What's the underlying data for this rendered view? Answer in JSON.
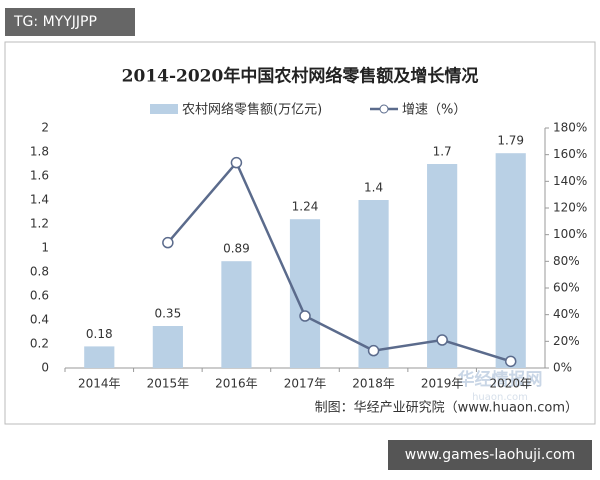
{
  "chart_data": {
    "type": "bar-line",
    "title": "2014-2020年中国农村网络零售额及增长情况",
    "categories": [
      "2014年",
      "2015年",
      "2016年",
      "2017年",
      "2018年",
      "2019年",
      "2020年"
    ],
    "series": [
      {
        "name": "农村网络零售额(万亿元)",
        "color": "#b9d0e5",
        "type": "bar",
        "values": [
          0.18,
          0.35,
          0.89,
          1.24,
          1.4,
          1.7,
          1.79
        ]
      },
      {
        "name": "增速（%）",
        "color": "#5b6b8c",
        "type": "line",
        "axis": "y2",
        "values": [
          null,
          94,
          154,
          39,
          13,
          21,
          5
        ]
      }
    ],
    "ylim": [
      0,
      2
    ],
    "yticks": [
      0,
      0.2,
      0.4,
      0.6,
      0.8,
      1,
      1.2,
      1.4,
      1.6,
      1.8,
      2
    ],
    "y2lim": [
      0,
      180
    ],
    "y2ticks": [
      {
        "value": 0,
        "label": "0%"
      },
      {
        "value": 20,
        "label": "20%"
      },
      {
        "value": 40,
        "label": "40%"
      },
      {
        "value": 60,
        "label": "60%"
      },
      {
        "value": 80,
        "label": "80%"
      },
      {
        "value": 100,
        "label": "100%"
      },
      {
        "value": 120,
        "label": "120%"
      },
      {
        "value": 140,
        "label": "140%"
      },
      {
        "value": 160,
        "label": "160%"
      },
      {
        "value": 180,
        "label": "180%"
      }
    ],
    "source": "制图：华经产业研究院（www.huaon.com）"
  },
  "overlay": {
    "tag": "TG: MYYJJPP",
    "watermark": "华经情报网",
    "watermark_sub": "huaon.com",
    "site": "www.games-laohuji.com"
  }
}
